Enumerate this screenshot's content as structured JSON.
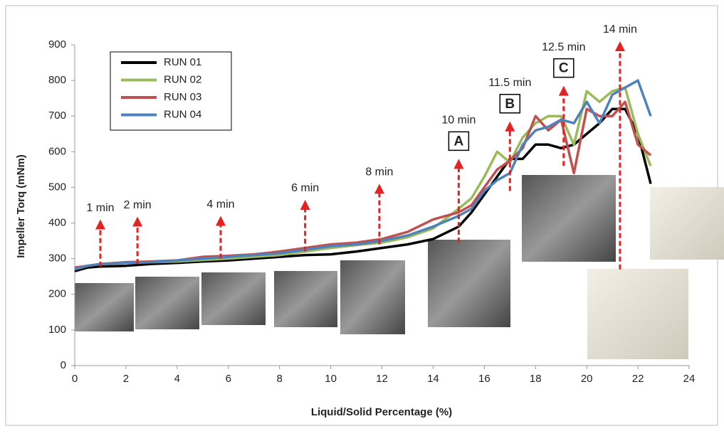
{
  "chart_data": {
    "type": "line",
    "y_label": "Impeller Torq (mNm)",
    "x_label": "Liquid/Solid Percentage (%)",
    "xlim": [
      0,
      24
    ],
    "xticks": [
      0,
      2,
      4,
      6,
      8,
      10,
      12,
      14,
      16,
      18,
      20,
      22,
      24
    ],
    "ylim": [
      0,
      900
    ],
    "yticks": [
      0,
      100,
      200,
      300,
      400,
      500,
      600,
      700,
      800,
      900
    ],
    "x": [
      0,
      0.5,
      1,
      2,
      3,
      4,
      5,
      6,
      7,
      8,
      9,
      10,
      11,
      12,
      13,
      14,
      15,
      15.5,
      16,
      16.5,
      17,
      17.5,
      18,
      18.5,
      19,
      19.5,
      20,
      20.5,
      21,
      21.5,
      22,
      22.5
    ],
    "series": [
      {
        "name": "RUN 01",
        "color": "#000000",
        "values": [
          265,
          275,
          278,
          280,
          285,
          288,
          292,
          295,
          300,
          305,
          310,
          312,
          320,
          330,
          340,
          355,
          390,
          430,
          480,
          530,
          580,
          580,
          620,
          620,
          610,
          620,
          650,
          680,
          720,
          720,
          650,
          510
        ]
      },
      {
        "name": "RUN 02",
        "color": "#9bbb59",
        "values": [
          270,
          280,
          285,
          288,
          290,
          292,
          296,
          300,
          305,
          310,
          320,
          330,
          338,
          345,
          360,
          385,
          440,
          470,
          530,
          600,
          570,
          640,
          680,
          700,
          700,
          620,
          770,
          740,
          770,
          780,
          650,
          560
        ]
      },
      {
        "name": "RUN 03",
        "color": "#c0504d",
        "values": [
          275,
          280,
          285,
          290,
          292,
          295,
          305,
          308,
          312,
          320,
          330,
          340,
          345,
          355,
          375,
          410,
          430,
          450,
          500,
          550,
          575,
          610,
          700,
          660,
          690,
          540,
          720,
          700,
          700,
          740,
          620,
          590
        ]
      },
      {
        "name": "RUN 04",
        "color": "#4f81bd",
        "values": [
          270,
          280,
          285,
          288,
          290,
          295,
          300,
          305,
          310,
          315,
          325,
          335,
          340,
          350,
          365,
          390,
          420,
          440,
          490,
          520,
          540,
          620,
          660,
          670,
          690,
          680,
          740,
          680,
          760,
          780,
          800,
          700
        ]
      }
    ],
    "annotations": [
      {
        "text": "1 min",
        "x": 1.0,
        "y_from": 278,
        "y_to": 410
      },
      {
        "text": "2 min",
        "x": 2.45,
        "y_from": 285,
        "y_to": 418
      },
      {
        "text": "4 min",
        "x": 5.7,
        "y_from": 300,
        "y_to": 420
      },
      {
        "text": "6 min",
        "x": 9.0,
        "y_from": 320,
        "y_to": 465
      },
      {
        "text": "8 min",
        "x": 11.9,
        "y_from": 340,
        "y_to": 510
      },
      {
        "text": "10 min",
        "letter": "A",
        "x": 15.0,
        "y_from": 345,
        "y_to": 580
      },
      {
        "text": "11.5 min",
        "letter": "B",
        "x": 17.0,
        "y_from": 490,
        "y_to": 685
      },
      {
        "text": "12.5 min",
        "letter": "C",
        "x": 19.1,
        "y_from": 560,
        "y_to": 785
      },
      {
        "text": "14 min",
        "x": 21.3,
        "y_from": 270,
        "y_to": 910
      }
    ],
    "arrow_color": "#e52222",
    "legend": "upper left"
  }
}
